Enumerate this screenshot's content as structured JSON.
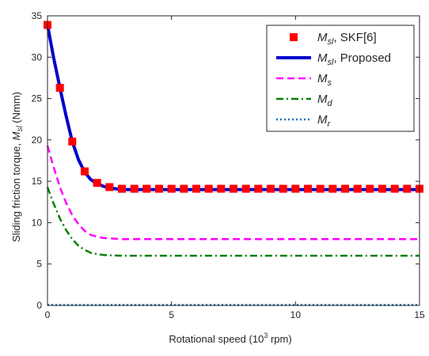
{
  "chart_data": {
    "type": "line",
    "title": "",
    "xlabel": "Rotational speed (10³ rpm)",
    "ylabel": "Sliding friction torque, M_sl (Nmm)",
    "ylabel_parts": {
      "main": "Sliding friction torque, ",
      "symbol": "M",
      "sub": "sl",
      "unit": " (Nmm)"
    },
    "xlabel_parts": {
      "main": "Rotational speed (10",
      "sup": "3",
      "unit": " rpm)"
    },
    "xlim": [
      0,
      15
    ],
    "ylim": [
      0,
      35
    ],
    "x_ticks": [
      0,
      5,
      10,
      15
    ],
    "y_ticks": [
      0,
      5,
      10,
      15,
      20,
      25,
      30,
      35
    ],
    "grid": false,
    "legend_position": "top-right",
    "series": [
      {
        "legend_symbol": "M",
        "legend_sub": "sl",
        "legend_suffix": ", SKF[6]",
        "style": "markers",
        "color": "#ff0000",
        "x": [
          0,
          0.5,
          1,
          1.5,
          2,
          2.5,
          3,
          3.5,
          4,
          4.5,
          5,
          5.5,
          6,
          6.5,
          7,
          7.5,
          8,
          8.5,
          9,
          9.5,
          10,
          10.5,
          11,
          11.5,
          12,
          12.5,
          13,
          13.5,
          14,
          14.5,
          15
        ],
        "y": [
          33.9,
          26.3,
          19.8,
          16.2,
          14.8,
          14.3,
          14.1,
          14.1,
          14.1,
          14.1,
          14.1,
          14.1,
          14.1,
          14.1,
          14.1,
          14.1,
          14.1,
          14.1,
          14.1,
          14.1,
          14.1,
          14.1,
          14.1,
          14.1,
          14.1,
          14.1,
          14.1,
          14.1,
          14.1,
          14.1,
          14.1
        ]
      },
      {
        "legend_symbol": "M",
        "legend_sub": "sl",
        "legend_suffix": ", Proposed",
        "style": "solid",
        "color": "#0000cc",
        "x": [
          0,
          0.25,
          0.5,
          0.75,
          1,
          1.25,
          1.5,
          1.75,
          2,
          2.25,
          2.5,
          2.75,
          3,
          3.5,
          4,
          5,
          6,
          8,
          10,
          12,
          15
        ],
        "y": [
          33.9,
          29.9,
          26.3,
          22.9,
          19.8,
          17.6,
          16.1,
          15.2,
          14.7,
          14.4,
          14.2,
          14.1,
          14.0,
          14.0,
          14.0,
          14.0,
          14.0,
          14.0,
          14.0,
          14.0,
          14.0
        ]
      },
      {
        "legend_symbol": "M",
        "legend_sub": "s",
        "legend_suffix": "",
        "style": "dashed",
        "color": "#ff00ff",
        "x": [
          0,
          0.25,
          0.5,
          0.75,
          1,
          1.25,
          1.5,
          1.75,
          2,
          2.25,
          2.5,
          2.75,
          3,
          3.5,
          4,
          5,
          6,
          8,
          10,
          12,
          15
        ],
        "y": [
          19.3,
          16.7,
          14.3,
          12.4,
          10.9,
          9.8,
          9.0,
          8.5,
          8.3,
          8.15,
          8.1,
          8.05,
          8.0,
          8.0,
          8.0,
          8.0,
          8.0,
          8.0,
          8.0,
          8.0,
          8.0
        ]
      },
      {
        "legend_symbol": "M",
        "legend_sub": "d",
        "legend_suffix": "",
        "style": "dashdot",
        "color": "#008000",
        "x": [
          0,
          0.25,
          0.5,
          0.75,
          1,
          1.25,
          1.5,
          1.75,
          2,
          2.25,
          2.5,
          2.75,
          3,
          3.5,
          4,
          5,
          6,
          8,
          10,
          12,
          15
        ],
        "y": [
          14.3,
          12.3,
          10.5,
          9.1,
          8.0,
          7.2,
          6.7,
          6.35,
          6.2,
          6.1,
          6.05,
          6.02,
          6.0,
          6.0,
          6.0,
          6.0,
          6.0,
          6.0,
          6.0,
          6.0,
          6.0
        ]
      },
      {
        "legend_symbol": "M",
        "legend_sub": "r",
        "legend_suffix": "",
        "style": "dotted",
        "color": "#0072bd",
        "x": [
          0,
          15
        ],
        "y": [
          0.05,
          0.05
        ]
      }
    ]
  }
}
